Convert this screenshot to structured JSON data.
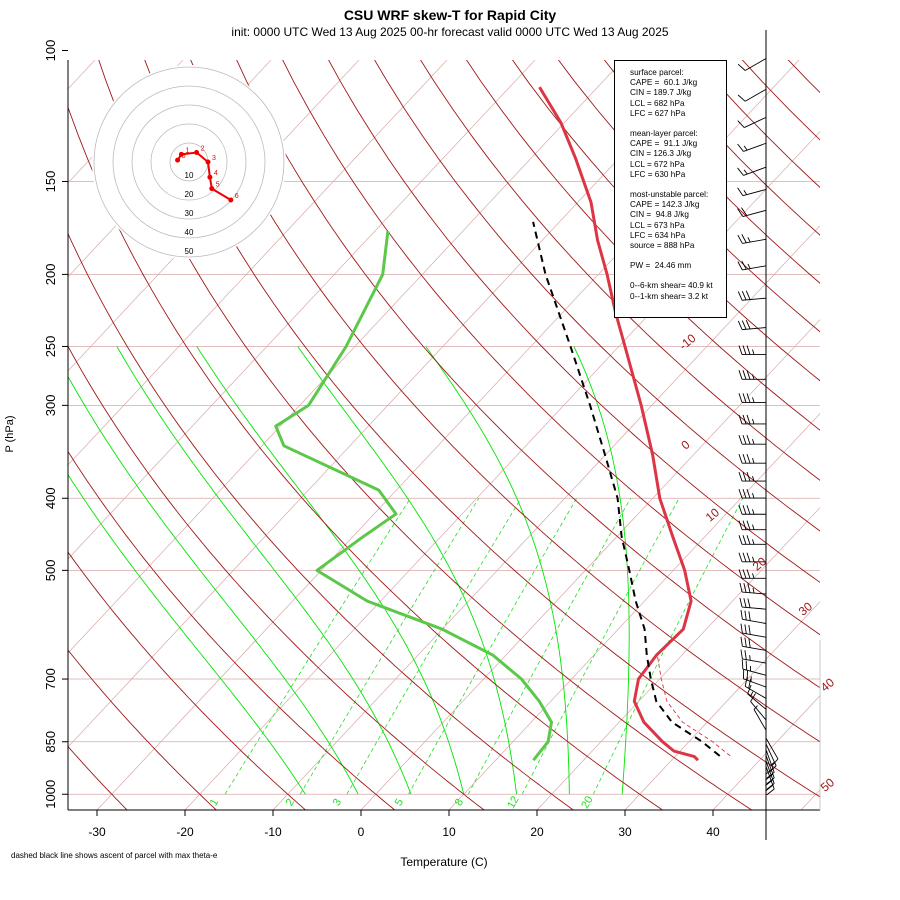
{
  "chart_data": {
    "type": "skew-T",
    "title": "CSU WRF skew-T for Rapid City",
    "subtitle": "init: 0000 UTC Wed 13 Aug 2025    00-hr forecast valid 0000 UTC Wed 13 Aug 2025",
    "xlabel": "Temperature (C)",
    "ylabel": "P (hPa)",
    "footnote": "dashed black line shows ascent of parcel with max theta-e",
    "x_ticks": [
      -30,
      -20,
      -10,
      0,
      10,
      20,
      30,
      40
    ],
    "y_ticks": [
      100,
      150,
      200,
      250,
      300,
      400,
      500,
      700,
      850,
      1000
    ],
    "xlim": [
      -33,
      44
    ],
    "ylim": [
      1050,
      100
    ],
    "dry_adiabat_labels": [
      "-10",
      "0",
      "10",
      "20",
      "30",
      "40",
      "50"
    ],
    "mixing_ratio_labels": [
      "1",
      "2",
      "3",
      "5",
      "8",
      "12",
      "20"
    ],
    "temperature_profile": [
      {
        "p": 900,
        "t": 33.0
      },
      {
        "p": 890,
        "t": 32.2
      },
      {
        "p": 875,
        "t": 29.3
      },
      {
        "p": 850,
        "t": 27.0
      },
      {
        "p": 800,
        "t": 22.8
      },
      {
        "p": 750,
        "t": 19.5
      },
      {
        "p": 700,
        "t": 17.6
      },
      {
        "p": 650,
        "t": 17.1
      },
      {
        "p": 600,
        "t": 17.4
      },
      {
        "p": 550,
        "t": 15.3
      },
      {
        "p": 500,
        "t": 11.3
      },
      {
        "p": 450,
        "t": 6.3
      },
      {
        "p": 400,
        "t": 0.8
      },
      {
        "p": 350,
        "t": -4.6
      },
      {
        "p": 300,
        "t": -11.2
      },
      {
        "p": 250,
        "t": -19.3
      },
      {
        "p": 225,
        "t": -24.0
      },
      {
        "p": 200,
        "t": -29.0
      },
      {
        "p": 180,
        "t": -33.7
      },
      {
        "p": 160,
        "t": -38.5
      },
      {
        "p": 140,
        "t": -44.8
      },
      {
        "p": 125,
        "t": -50.4
      },
      {
        "p": 112,
        "t": -56.6
      }
    ],
    "dewpoint_profile": [
      {
        "p": 900,
        "t": 14.3
      },
      {
        "p": 850,
        "t": 14.0
      },
      {
        "p": 800,
        "t": 12.3
      },
      {
        "p": 750,
        "t": 8.7
      },
      {
        "p": 700,
        "t": 4.3
      },
      {
        "p": 650,
        "t": -1.5
      },
      {
        "p": 600,
        "t": -10.0
      },
      {
        "p": 550,
        "t": -21.5
      },
      {
        "p": 500,
        "t": -30.5
      },
      {
        "p": 450,
        "t": -28.8
      },
      {
        "p": 420,
        "t": -27.5
      },
      {
        "p": 390,
        "t": -32.0
      },
      {
        "p": 340,
        "t": -47.5
      },
      {
        "p": 320,
        "t": -50.5
      },
      {
        "p": 300,
        "t": -49.0
      },
      {
        "p": 250,
        "t": -51.0
      },
      {
        "p": 200,
        "t": -54.5
      },
      {
        "p": 175,
        "t": -58.5
      }
    ],
    "parcel_ascent": [
      {
        "p": 888,
        "t": 35.0
      },
      {
        "p": 850,
        "t": 31.5
      },
      {
        "p": 800,
        "t": 26.0
      },
      {
        "p": 750,
        "t": 22.0
      },
      {
        "p": 700,
        "t": 19.0
      },
      {
        "p": 650,
        "t": 16.0
      },
      {
        "p": 600,
        "t": 13.0
      },
      {
        "p": 550,
        "t": 9.0
      },
      {
        "p": 500,
        "t": 5.0
      },
      {
        "p": 450,
        "t": 0.5
      },
      {
        "p": 400,
        "t": -4.0
      },
      {
        "p": 350,
        "t": -10.0
      },
      {
        "p": 300,
        "t": -17.0
      },
      {
        "p": 250,
        "t": -25.5
      },
      {
        "p": 200,
        "t": -36.0
      },
      {
        "p": 170,
        "t": -43.0
      }
    ],
    "wind_barbs": [
      {
        "p": 100,
        "spd": 10,
        "dir": 240
      },
      {
        "p": 110,
        "spd": 10,
        "dir": 240
      },
      {
        "p": 120,
        "spd": 10,
        "dir": 245
      },
      {
        "p": 130,
        "spd": 15,
        "dir": 250
      },
      {
        "p": 140,
        "spd": 15,
        "dir": 250
      },
      {
        "p": 150,
        "spd": 15,
        "dir": 255
      },
      {
        "p": 160,
        "spd": 20,
        "dir": 255
      },
      {
        "p": 175,
        "spd": 25,
        "dir": 260
      },
      {
        "p": 190,
        "spd": 25,
        "dir": 260
      },
      {
        "p": 210,
        "spd": 30,
        "dir": 265
      },
      {
        "p": 230,
        "spd": 30,
        "dir": 265
      },
      {
        "p": 250,
        "spd": 35,
        "dir": 270
      },
      {
        "p": 270,
        "spd": 35,
        "dir": 270
      },
      {
        "p": 290,
        "spd": 35,
        "dir": 270
      },
      {
        "p": 310,
        "spd": 35,
        "dir": 270
      },
      {
        "p": 330,
        "spd": 35,
        "dir": 270
      },
      {
        "p": 350,
        "spd": 35,
        "dir": 270
      },
      {
        "p": 370,
        "spd": 35,
        "dir": 270
      },
      {
        "p": 390,
        "spd": 35,
        "dir": 270
      },
      {
        "p": 410,
        "spd": 35,
        "dir": 270
      },
      {
        "p": 430,
        "spd": 35,
        "dir": 270
      },
      {
        "p": 450,
        "spd": 35,
        "dir": 270
      },
      {
        "p": 475,
        "spd": 35,
        "dir": 270
      },
      {
        "p": 500,
        "spd": 35,
        "dir": 270
      },
      {
        "p": 525,
        "spd": 35,
        "dir": 275
      },
      {
        "p": 550,
        "spd": 30,
        "dir": 275
      },
      {
        "p": 575,
        "spd": 30,
        "dir": 280
      },
      {
        "p": 600,
        "spd": 30,
        "dir": 280
      },
      {
        "p": 625,
        "spd": 30,
        "dir": 280
      },
      {
        "p": 650,
        "spd": 25,
        "dir": 280
      },
      {
        "p": 675,
        "spd": 25,
        "dir": 285
      },
      {
        "p": 700,
        "spd": 25,
        "dir": 290
      },
      {
        "p": 725,
        "spd": 20,
        "dir": 300
      },
      {
        "p": 750,
        "spd": 15,
        "dir": 310
      },
      {
        "p": 775,
        "spd": 10,
        "dir": 320
      },
      {
        "p": 800,
        "spd": 5,
        "dir": 330
      },
      {
        "p": 820,
        "spd": 10,
        "dir": 150
      },
      {
        "p": 835,
        "spd": 15,
        "dir": 155
      },
      {
        "p": 850,
        "spd": 20,
        "dir": 160
      },
      {
        "p": 865,
        "spd": 20,
        "dir": 160
      },
      {
        "p": 880,
        "spd": 20,
        "dir": 160
      },
      {
        "p": 895,
        "spd": 20,
        "dir": 160
      }
    ],
    "hodograph": {
      "ring_labels": [
        "10",
        "20",
        "30",
        "40",
        "50"
      ],
      "points": [
        {
          "label": "0",
          "u": -6,
          "v": 1
        },
        {
          "label": "1",
          "u": -4,
          "v": 4
        },
        {
          "label": "2",
          "u": 4,
          "v": 5
        },
        {
          "label": "3",
          "u": 10,
          "v": 0
        },
        {
          "label": "4",
          "u": 11,
          "v": -8
        },
        {
          "label": "5",
          "u": 12,
          "v": -14
        },
        {
          "label": "6",
          "u": 22,
          "v": -20
        }
      ]
    }
  },
  "info": {
    "blocks": [
      [
        "surface parcel:",
        "CAPE =  60.1 J/kg",
        "CIN = 189.7 J/kg",
        "LCL = 682 hPa",
        "LFC = 627 hPa"
      ],
      [
        "mean-layer parcel:",
        "CAPE =  91.1 J/kg",
        "CIN = 126.3 J/kg",
        "LCL = 672 hPa",
        "LFC = 630 hPa"
      ],
      [
        "most-unstable parcel:",
        "CAPE = 142.3 J/kg",
        "CIN =  94.8 J/kg",
        "LCL = 673 hPa",
        "LFC = 634 hPa",
        "source = 888 hPa"
      ],
      [
        "PW =  24.46 mm"
      ],
      [
        "0--6-km shear= 40.9 kt",
        "0--1-km shear= 3.2 kt"
      ]
    ]
  },
  "colors": {
    "temperature": "#dc3545",
    "dewpoint": "#5cc84a",
    "dry_adiabat": "#a01818",
    "isotherm_isobar": "#d8a8a8",
    "mixing_ratio": "#22dd22",
    "moist_adiabat": "#00e600",
    "hodograph": "#ee0000"
  }
}
